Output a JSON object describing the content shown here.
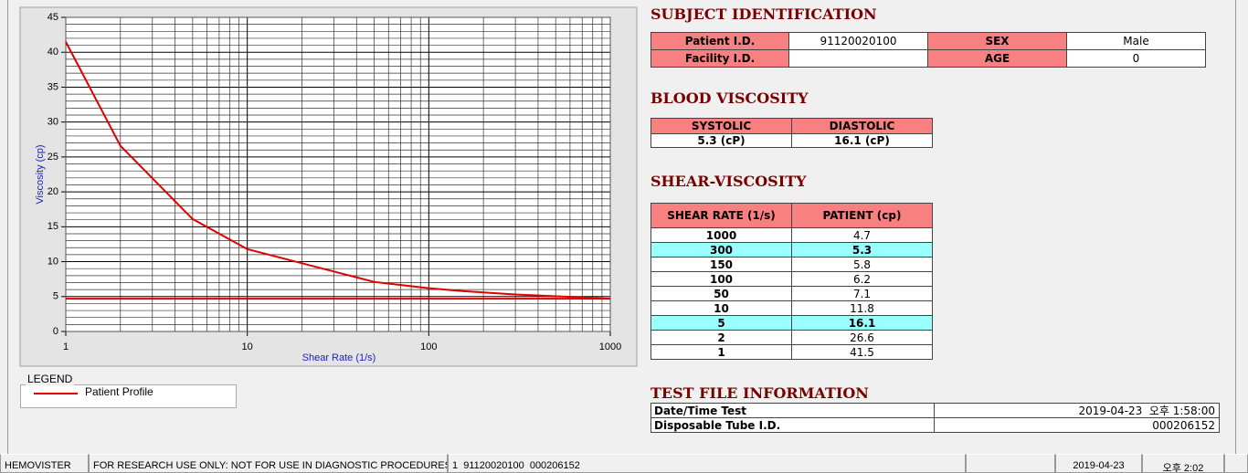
{
  "chart_data": {
    "type": "line",
    "x_label": "Shear Rate (1/s)",
    "y_label": "Viscosity (cp)",
    "xscale": "log",
    "xlim": [
      1,
      1000
    ],
    "xticks": [
      1,
      10,
      100,
      1000
    ],
    "ylim": [
      0,
      45
    ],
    "yticks": [
      0,
      5,
      10,
      15,
      20,
      25,
      30,
      35,
      40,
      45
    ],
    "grid": true,
    "legend_title": "LEGEND",
    "series": [
      {
        "name": "Patient Profile",
        "color": "#e00000",
        "x": [
          1,
          2,
          5,
          10,
          50,
          100,
          150,
          300,
          1000
        ],
        "values": [
          41.5,
          26.6,
          16.1,
          11.8,
          7.1,
          6.2,
          5.8,
          5.3,
          4.7
        ]
      },
      {
        "color": "#e00000",
        "x": [
          1,
          1000
        ],
        "values": [
          4.7,
          4.7
        ]
      }
    ]
  },
  "subject_identification": {
    "title": "SUBJECT IDENTIFICATION",
    "rows": [
      {
        "label": "Patient I.D.",
        "value": "91120020100",
        "label2": "SEX",
        "value2": "Male"
      },
      {
        "label": "Facility I.D.",
        "label2": "AGE",
        "value2": "0"
      }
    ]
  },
  "blood_viscosity": {
    "title": "BLOOD VISCOSITY",
    "headers": [
      "SYSTOLIC",
      "DIASTOLIC"
    ],
    "values": [
      "5.3 (cP)",
      "16.1 (cP)"
    ]
  },
  "shear_viscosity": {
    "title": "SHEAR-VISCOSITY",
    "headers": [
      "SHEAR RATE (1/s)",
      "PATIENT (cp)"
    ],
    "rows": [
      {
        "cells": [
          "1000",
          "4.7"
        ]
      },
      {
        "cells": [
          "300",
          "5.3"
        ],
        "color": "#99ffff"
      },
      {
        "cells": [
          "150",
          "5.8"
        ]
      },
      {
        "cells": [
          "100",
          "6.2"
        ]
      },
      {
        "cells": [
          "50",
          "7.1"
        ]
      },
      {
        "cells": [
          "10",
          "11.8"
        ]
      },
      {
        "cells": [
          "5",
          "16.1"
        ],
        "color": "#99ffff"
      },
      {
        "cells": [
          "2",
          "26.6"
        ]
      },
      {
        "cells": [
          "1",
          "41.5"
        ]
      }
    ]
  },
  "test_file": {
    "title": "TEST FILE INFORMATION",
    "rows": [
      [
        "Date/Time Test",
        "2019-04-23  오후 1:58:00"
      ],
      [
        "Disposable Tube I.D.",
        "000206152"
      ]
    ]
  },
  "status_bar": [
    "HEMOVISTER",
    "FOR RESEARCH USE ONLY: NOT FOR USE IN DIAGNOSTIC PROCEDURES",
    "1  91120020100  000206152",
    "2019-04-23",
    "오후 2:02"
  ]
}
